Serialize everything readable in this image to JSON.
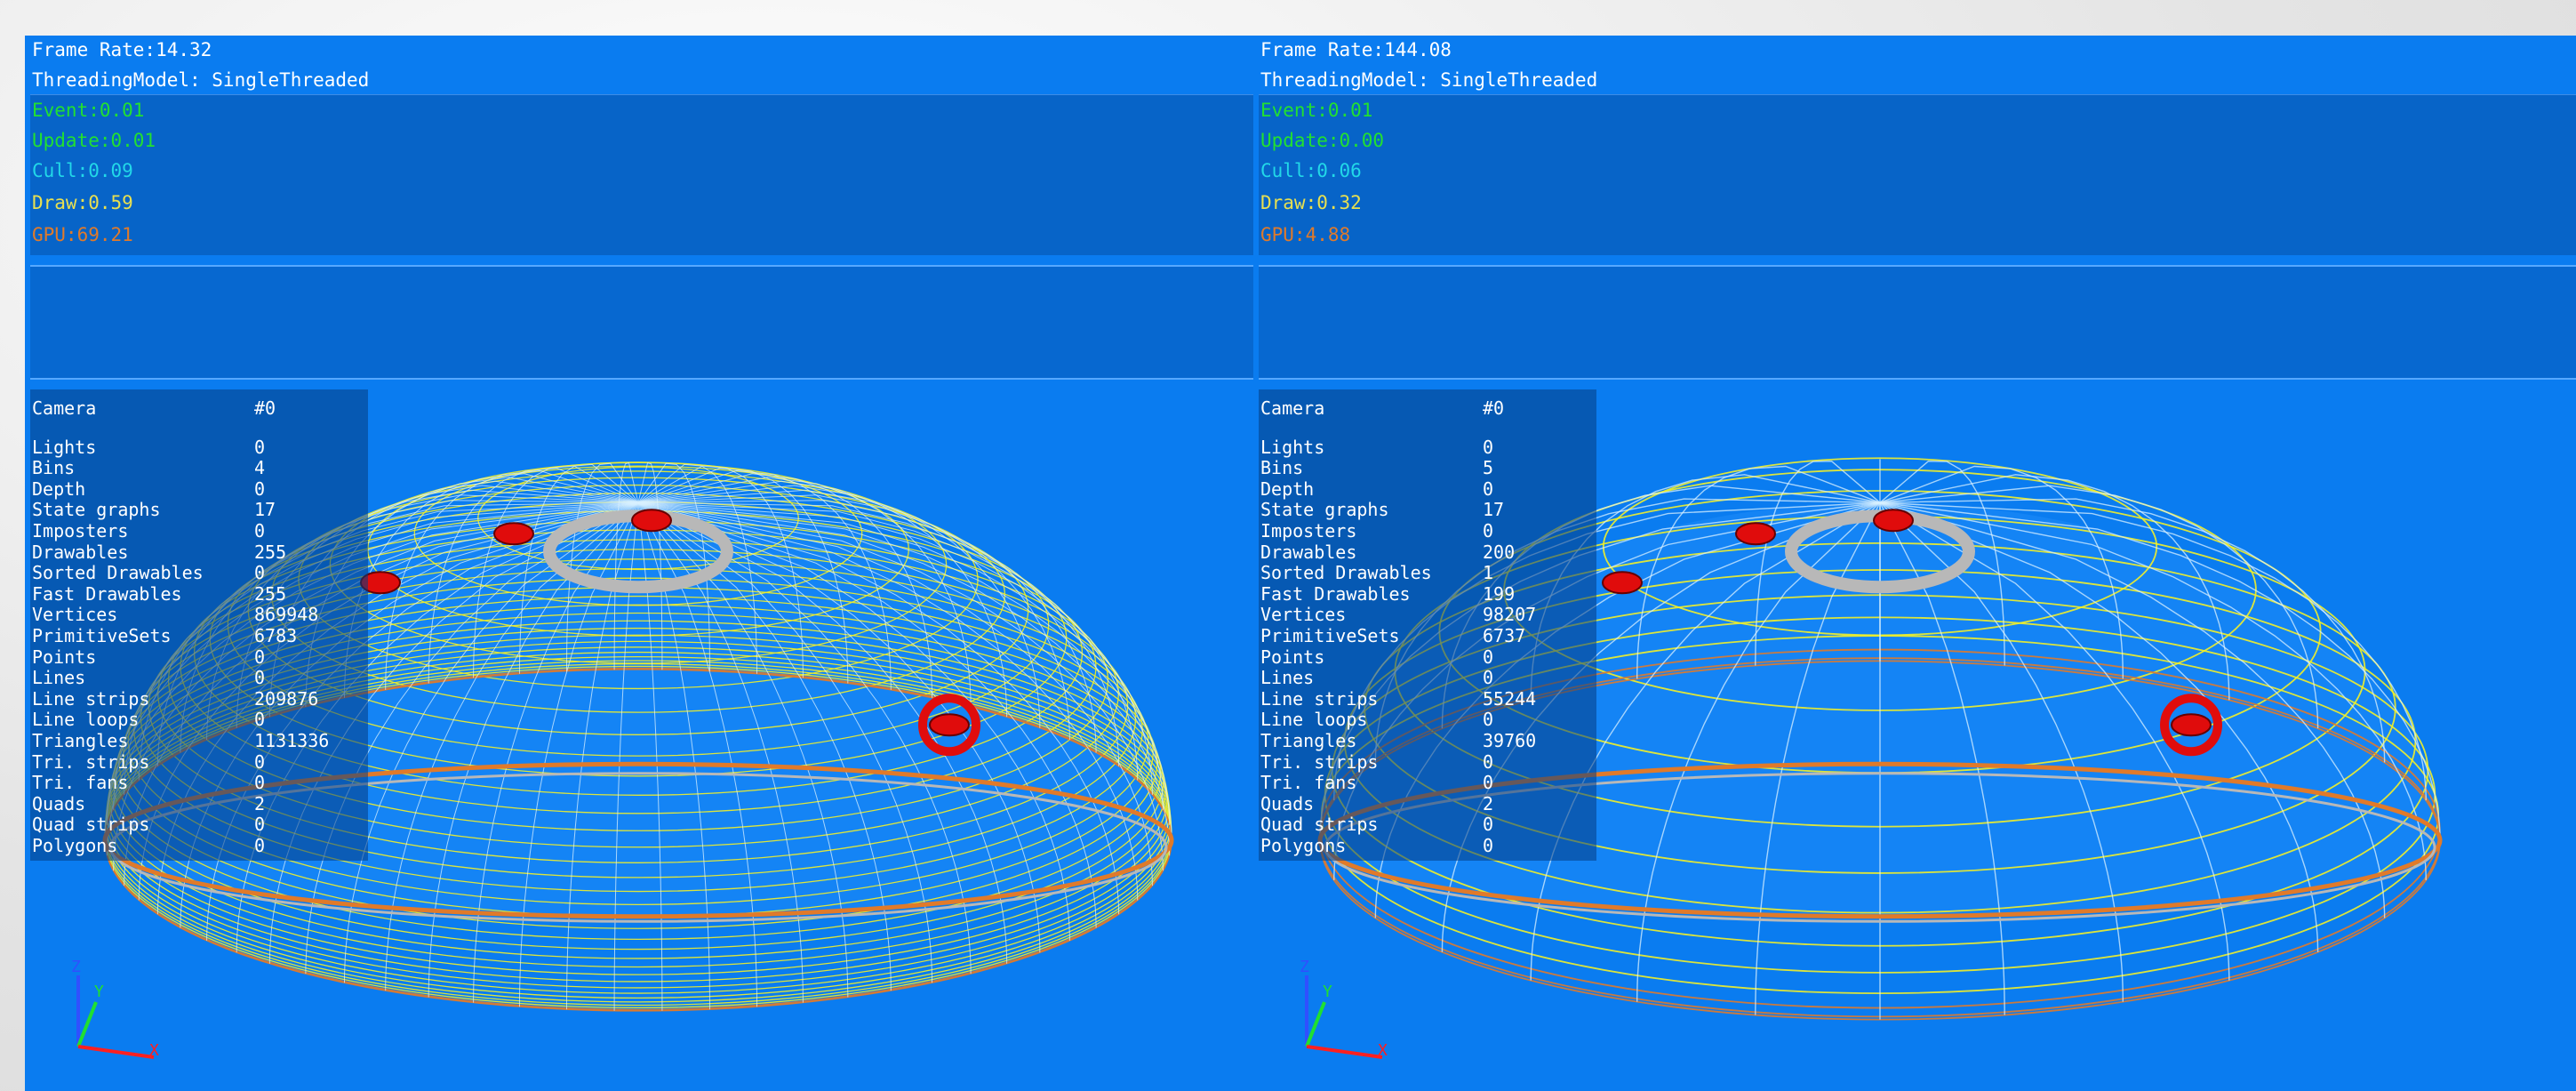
{
  "left": {
    "frame_rate": "Frame Rate:14.32",
    "threading": "ThreadingModel: SingleThreaded",
    "event": "Event:0.01",
    "update": "Update:0.01",
    "cull": "Cull:0.09",
    "draw": "Draw:0.59",
    "gpu": "GPU:69.21",
    "camera": {
      "label": "Camera",
      "value": "#0"
    },
    "rows": [
      {
        "label": "Lights",
        "value": "0"
      },
      {
        "label": "Bins",
        "value": "4"
      },
      {
        "label": "Depth",
        "value": "0"
      },
      {
        "label": "State graphs",
        "value": "17"
      },
      {
        "label": "Imposters",
        "value": "0"
      },
      {
        "label": "Drawables",
        "value": "255"
      },
      {
        "label": "Sorted Drawables",
        "value": "0"
      },
      {
        "label": "Fast Drawables",
        "value": "255"
      },
      {
        "label": "Vertices",
        "value": "869948"
      },
      {
        "label": "PrimitiveSets",
        "value": "6783"
      },
      {
        "label": "Points",
        "value": "0"
      },
      {
        "label": "Lines",
        "value": "0"
      },
      {
        "label": "Line strips",
        "value": "209876"
      },
      {
        "label": "Line loops",
        "value": "0"
      },
      {
        "label": "Triangles",
        "value": "1131336"
      },
      {
        "label": "Tri. strips",
        "value": "0"
      },
      {
        "label": "Tri. fans",
        "value": "0"
      },
      {
        "label": "Quads",
        "value": "2"
      },
      {
        "label": "Quad strips",
        "value": "0"
      },
      {
        "label": "Polygons",
        "value": "0"
      }
    ],
    "axis_label_x": "X",
    "axis_label_y": "Y",
    "axis_label_z": "Z"
  },
  "right": {
    "frame_rate": "Frame Rate:144.08",
    "threading": "ThreadingModel: SingleThreaded",
    "event": "Event:0.01",
    "update": "Update:0.00",
    "cull": "Cull:0.06",
    "draw": "Draw:0.32",
    "gpu": "GPU:4.88",
    "camera": {
      "label": "Camera",
      "value": "#0"
    },
    "rows": [
      {
        "label": "Lights",
        "value": "0"
      },
      {
        "label": "Bins",
        "value": "5"
      },
      {
        "label": "Depth",
        "value": "0"
      },
      {
        "label": "State graphs",
        "value": "17"
      },
      {
        "label": "Imposters",
        "value": "0"
      },
      {
        "label": "Drawables",
        "value": "200"
      },
      {
        "label": "Sorted Drawables",
        "value": "1"
      },
      {
        "label": "Fast Drawables",
        "value": "199"
      },
      {
        "label": "Vertices",
        "value": "98207"
      },
      {
        "label": "PrimitiveSets",
        "value": "6737"
      },
      {
        "label": "Points",
        "value": "0"
      },
      {
        "label": "Lines",
        "value": "0"
      },
      {
        "label": "Line strips",
        "value": "55244"
      },
      {
        "label": "Line loops",
        "value": "0"
      },
      {
        "label": "Triangles",
        "value": "39760"
      },
      {
        "label": "Tri. strips",
        "value": "0"
      },
      {
        "label": "Tri. fans",
        "value": "0"
      },
      {
        "label": "Quads",
        "value": "2"
      },
      {
        "label": "Quad strips",
        "value": "0"
      },
      {
        "label": "Polygons",
        "value": "0"
      }
    ],
    "axis_label_x": "X",
    "axis_label_y": "Y",
    "axis_label_z": "Z"
  },
  "colors": {
    "viewport_bg": "#0a7cf0",
    "wire_yellow": "#f2f028",
    "wire_orange": "#e07a2a",
    "wire_white": "#d8f0ff",
    "marker_red": "#e00c0c"
  }
}
